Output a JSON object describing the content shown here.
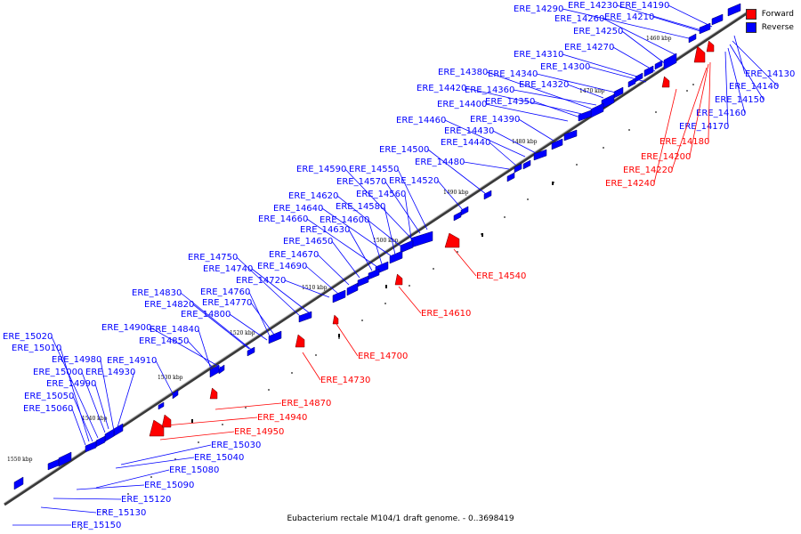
{
  "legend": {
    "forward_label": "Forward",
    "reverse_label": "Reverse",
    "forward_color": "#ff0000",
    "reverse_color": "#0000ff"
  },
  "caption": "Eubacterium rectale M104/1 draft genome. - 0..3698419",
  "colors": {
    "forward": "#ff0000",
    "reverse": "#0000ff",
    "axis": "#444444"
  },
  "axis": {
    "ticks": [
      "1460 kbp",
      "1470 kbp",
      "1480 kbp",
      "1490 kbp",
      "1500 kbp",
      "1510 kbp",
      "1520 kbp",
      "1530 kbp",
      "1540 kbp",
      "1550 kbp"
    ]
  },
  "genes": {
    "reverse": [
      "ERE_14130",
      "ERE_14140",
      "ERE_14150",
      "ERE_14160",
      "ERE_14170",
      "ERE_14190",
      "ERE_14210",
      "ERE_14230",
      "ERE_14250",
      "ERE_14260",
      "ERE_14270",
      "ERE_14290",
      "ERE_14300",
      "ERE_14310",
      "ERE_14320",
      "ERE_14340",
      "ERE_14350",
      "ERE_14360",
      "ERE_14380",
      "ERE_14390",
      "ERE_14400",
      "ERE_14420",
      "ERE_14430",
      "ERE_14440",
      "ERE_14460",
      "ERE_14480",
      "ERE_14500",
      "ERE_14520",
      "ERE_14550",
      "ERE_14560",
      "ERE_14570",
      "ERE_14580",
      "ERE_14590",
      "ERE_14600",
      "ERE_14620",
      "ERE_14630",
      "ERE_14640",
      "ERE_14650",
      "ERE_14660",
      "ERE_14670",
      "ERE_14690",
      "ERE_14720",
      "ERE_14740",
      "ERE_14750",
      "ERE_14760",
      "ERE_14770",
      "ERE_14800",
      "ERE_14820",
      "ERE_14830",
      "ERE_14840",
      "ERE_14850",
      "ERE_14900",
      "ERE_14910",
      "ERE_14930",
      "ERE_14980",
      "ERE_14990",
      "ERE_15000",
      "ERE_15010",
      "ERE_15020",
      "ERE_15030",
      "ERE_15040",
      "ERE_15050",
      "ERE_15060",
      "ERE_15080",
      "ERE_15090",
      "ERE_15120",
      "ERE_15130",
      "ERE_15150"
    ],
    "forward": [
      "ERE_14180",
      "ERE_14200",
      "ERE_14220",
      "ERE_14240",
      "ERE_14540",
      "ERE_14610",
      "ERE_14700",
      "ERE_14730",
      "ERE_14870",
      "ERE_14940",
      "ERE_14950"
    ]
  }
}
